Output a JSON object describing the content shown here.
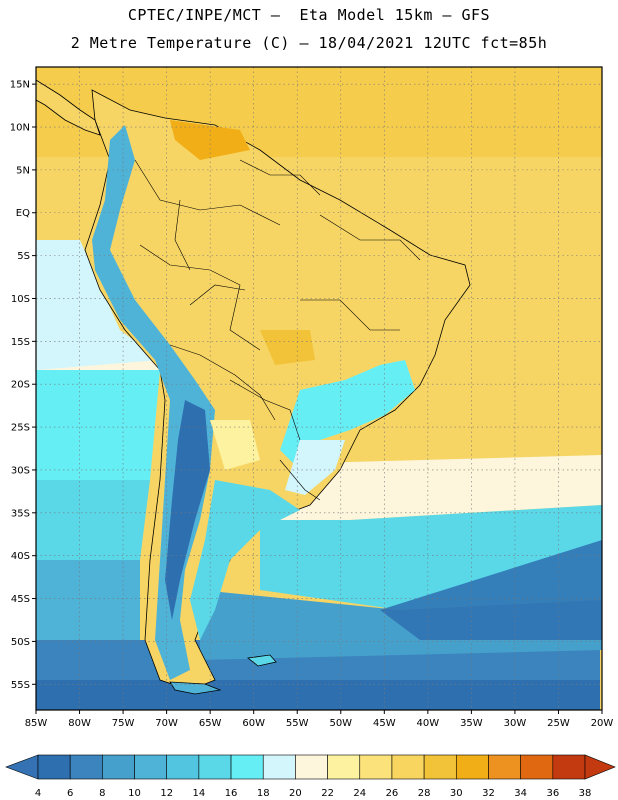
{
  "header": {
    "line1": "CPTEC/INPE/MCT –  Eta Model 15km – GFS",
    "line2": "2 Metre Temperature (C) – 18/04/2021 12UTC fct=85h"
  },
  "map": {
    "lon_range": [
      -85,
      -20
    ],
    "lat_range": [
      -58,
      17
    ],
    "lat_ticks": [
      "15N",
      "10N",
      "5N",
      "EQ",
      "5S",
      "10S",
      "15S",
      "20S",
      "25S",
      "30S",
      "35S",
      "40S",
      "45S",
      "50S",
      "55S"
    ],
    "lat_values": [
      15,
      10,
      5,
      0,
      -5,
      -10,
      -15,
      -20,
      -25,
      -30,
      -35,
      -40,
      -45,
      -50,
      -55
    ],
    "lon_ticks": [
      "85W",
      "80W",
      "75W",
      "70W",
      "65W",
      "60W",
      "55W",
      "50W",
      "45W",
      "40W",
      "35W",
      "30W",
      "25W",
      "20W"
    ],
    "lon_values": [
      -85,
      -80,
      -75,
      -70,
      -65,
      -60,
      -55,
      -50,
      -45,
      -40,
      -35,
      -30,
      -25,
      -20
    ],
    "grid": true
  },
  "colorbar": {
    "labels": [
      "4",
      "6",
      "8",
      "10",
      "12",
      "14",
      "16",
      "18",
      "20",
      "22",
      "24",
      "26",
      "28",
      "30",
      "32",
      "34",
      "36",
      "38"
    ],
    "colors": [
      "#2e6fb0",
      "#3b84bd",
      "#46a0cc",
      "#4fb3d8",
      "#52c6e0",
      "#5ad8e8",
      "#66eef5",
      "#d2f6fb",
      "#fdf6dc",
      "#fdf2a0",
      "#fbe27a",
      "#f8d55e",
      "#f2c238",
      "#f1ae16",
      "#ed9120",
      "#e06810",
      "#c43a10"
    ],
    "under_color": "#3472b4",
    "over_color": "#c43a10"
  }
}
